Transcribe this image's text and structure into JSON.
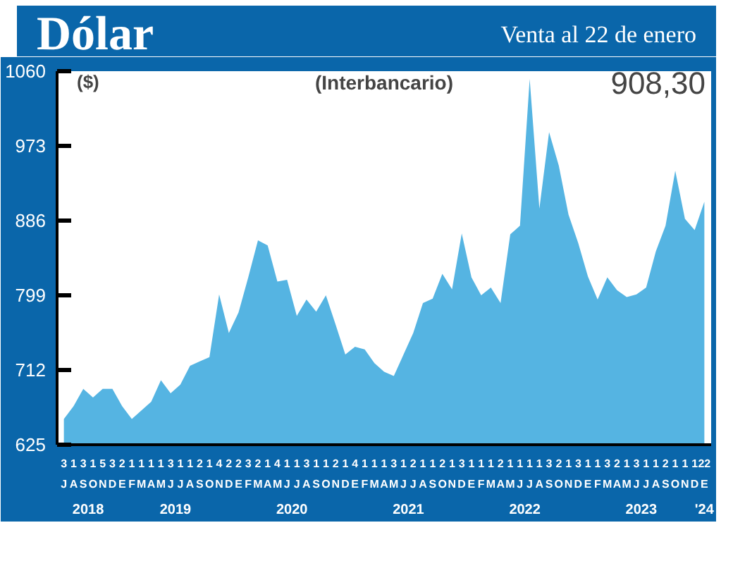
{
  "chart_data": {
    "type": "area",
    "title": "Dólar",
    "subtitle": "Venta al 22 de enero",
    "ylabel": "($)",
    "annotations": [
      "(Interbancario)",
      "908,30",
      "2018",
      "2019",
      "2020",
      "2021",
      "2022",
      "2023",
      "'24"
    ],
    "categories": [
      "3\nJ",
      "1\nA",
      "3\nS",
      "1\nO",
      "5\nN",
      "3\nD",
      "2\nE",
      "1\nF",
      "1\nM",
      "1\nA",
      "1\nM",
      "3\nJ",
      "1\nJ",
      "1\nA",
      "2\nS",
      "1\nO",
      "4\nN",
      "2\nD",
      "2\nE",
      "3\nF",
      "2\nM",
      "1\nA",
      "4\nM",
      "1\nJ",
      "1\nJ",
      "3\nA",
      "1\nS",
      "1\nO",
      "2\nN",
      "1\nD",
      "4\nE",
      "1\nF",
      "1\nM",
      "1\nA",
      "3\nM",
      "1\nJ",
      "2\nJ",
      "1\nA",
      "1\nS",
      "2\nO",
      "1\nN",
      "3\nD",
      "1\nE",
      "1\nF",
      "1\nM",
      "2\nA",
      "1\nM",
      "1\nJ",
      "1\nJ",
      "1\nA",
      "3\nS",
      "2\nO",
      "1\nN",
      "3\nD",
      "1\nE",
      "1\nF",
      "3\nM",
      "2\nA",
      "1\nM",
      "3\nJ",
      "1\nJ",
      "1\nA",
      "2\nS",
      "1\nO",
      "1\nN",
      "1\nD",
      "22\nE"
    ],
    "series": [
      {
        "color": "#55b4e2",
        "values": [
          655,
          670,
          690,
          680,
          690,
          690,
          670,
          655,
          665,
          675,
          700,
          685,
          695,
          717,
          722,
          727,
          800,
          755,
          779,
          820,
          863,
          857,
          815,
          817,
          775,
          794,
          780,
          799,
          765,
          730,
          739,
          736,
          720,
          710,
          705,
          730,
          755,
          790,
          795,
          824,
          806,
          871,
          820,
          799,
          808,
          790,
          870,
          880,
          1051,
          900,
          989,
          950,
          893,
          860,
          821,
          794,
          820,
          805,
          797,
          800,
          808,
          850,
          880,
          944,
          888,
          875,
          908
        ]
      }
    ],
    "ylim": [
      625,
      1060
    ],
    "yticks": [
      625,
      712,
      799,
      886,
      973,
      1060
    ]
  }
}
